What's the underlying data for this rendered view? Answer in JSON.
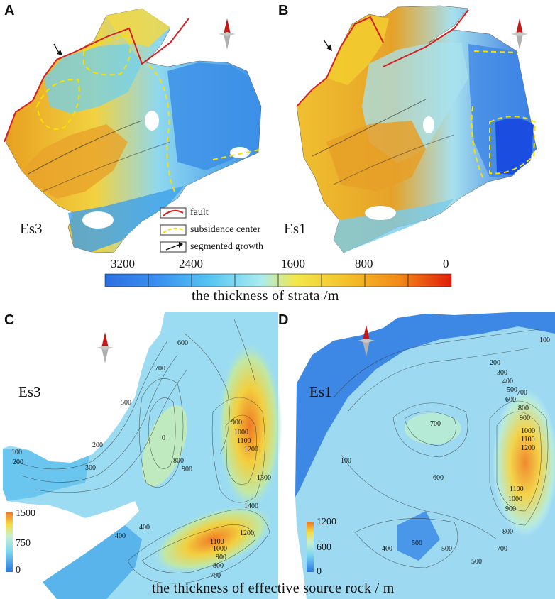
{
  "panels": {
    "A": {
      "letter": "A",
      "unit": "Es3"
    },
    "B": {
      "letter": "B",
      "unit": "Es1"
    },
    "C": {
      "letter": "C",
      "unit": "Es3"
    },
    "D": {
      "letter": "D",
      "unit": "Es1"
    }
  },
  "legend": {
    "fault": "fault",
    "subsidence": "subsidence center",
    "segmented": "segmented growth"
  },
  "strata_scale": {
    "ticks": [
      "3200",
      "2400",
      "1600",
      "800",
      "0"
    ],
    "caption": "the thickness of strata /m",
    "colors": [
      "#2b6fe0",
      "#3a8ff0",
      "#4fb0f2",
      "#62cdf2",
      "#85e6f0",
      "#b4f0ef",
      "#f2e84a",
      "#f5cf2e",
      "#f5b023",
      "#f39019",
      "#ee6a12",
      "#e83a0c",
      "#e01d0a"
    ]
  },
  "source_scale_C": {
    "max": "1500",
    "mid": "750",
    "min": "0"
  },
  "source_scale_D": {
    "max": "1200",
    "mid": "600",
    "min": "0"
  },
  "contours_C": [
    "600",
    "400",
    "700",
    "500",
    "300",
    "200",
    "100",
    "200",
    "0",
    "900",
    "800",
    "900",
    "1000",
    "1100",
    "1200",
    "1300",
    "1400",
    "400",
    "1200",
    "1100",
    "1000",
    "900",
    "800",
    "700"
  ],
  "contours_D": [
    "100",
    "200",
    "300",
    "400",
    "500",
    "600",
    "700",
    "700",
    "800",
    "900",
    "1000",
    "1100",
    "1200",
    "100",
    "600",
    "1100",
    "1000",
    "900",
    "800",
    "700",
    "400",
    "500",
    "500",
    "500"
  ],
  "bottom_caption": "the thickness of effective source rock / m",
  "colors": {
    "fault": "#d42020",
    "subsidence": "#f5e000"
  }
}
